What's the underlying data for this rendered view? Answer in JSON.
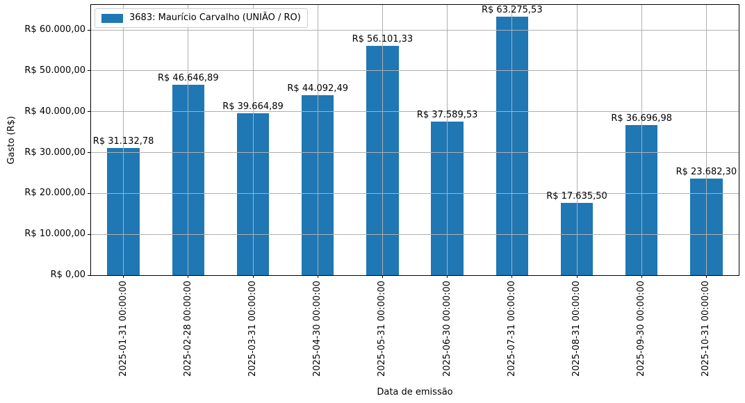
{
  "chart_data": {
    "type": "bar",
    "title": "",
    "xlabel": "Data de emissão",
    "ylabel": "Gasto (R$)",
    "legend": {
      "label": "3683: Maurício Carvalho (UNIÃO / RO)",
      "position": "upper-left"
    },
    "categories": [
      "2025-01-31 00:00:00",
      "2025-02-28 00:00:00",
      "2025-03-31 00:00:00",
      "2025-04-30 00:00:00",
      "2025-05-31 00:00:00",
      "2025-06-30 00:00:00",
      "2025-07-31 00:00:00",
      "2025-08-31 00:00:00",
      "2025-09-30 00:00:00",
      "2025-10-31 00:00:00"
    ],
    "values": [
      31132.78,
      46646.89,
      39664.89,
      44092.49,
      56101.33,
      37589.53,
      63275.53,
      17635.5,
      36696.98,
      23682.3
    ],
    "bar_labels": [
      "R$ 31.132,78",
      "R$ 46.646,89",
      "R$ 39.664,89",
      "R$ 44.092,49",
      "R$ 56.101,33",
      "R$ 37.589,53",
      "R$ 63.275,53",
      "R$ 17.635,50",
      "R$ 36.696,98",
      "R$ 23.682,30"
    ],
    "yticks": [
      {
        "value": 0,
        "label": "R$ 0,00"
      },
      {
        "value": 10000,
        "label": "R$ 10.000,00"
      },
      {
        "value": 20000,
        "label": "R$ 20.000,00"
      },
      {
        "value": 30000,
        "label": "R$ 30.000,00"
      },
      {
        "value": 40000,
        "label": "R$ 40.000,00"
      },
      {
        "value": 50000,
        "label": "R$ 50.000,00"
      },
      {
        "value": 60000,
        "label": "R$ 60.000,00"
      }
    ],
    "ylim": [
      0,
      66120
    ],
    "grid": true,
    "legend_border_color": "#cccccc",
    "bar_color": "#1f77b4",
    "grid_color": "#b0b0b0",
    "text_color": "#000000"
  }
}
